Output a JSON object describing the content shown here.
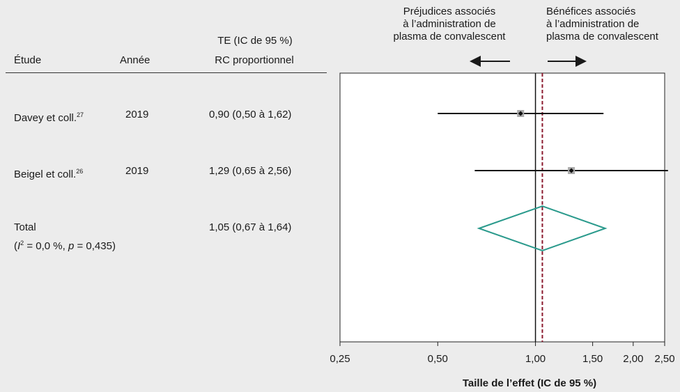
{
  "columns": {
    "study": "Étude",
    "year": "Année",
    "effect_line1": "TE (IC de 95 %)",
    "effect_line2": "RC proportionnel"
  },
  "rows": [
    {
      "study": "Davey et coll.",
      "ref": "27",
      "year": "2019",
      "effect": "0,90 (0,50 à 1,62)"
    },
    {
      "study": "Beigel et coll.",
      "ref": "26",
      "year": "2019",
      "effect": "1,29 (0,65 à 2,56)"
    }
  ],
  "total": {
    "label": "Total",
    "het_i": "I",
    "het_sup": "2",
    "het_rest": " = 0,0 %, ",
    "het_p": "p",
    "het_pval": " = 0,435)",
    "het_open": "(",
    "effect": "1,05 (0,67 à 1,64)"
  },
  "direction": {
    "left_lines": [
      "Préjudices associés",
      "à l’administration de",
      "plasma de convalescent"
    ],
    "right_lines": [
      "Bénéfices associés",
      "à l’administration de",
      "plasma de convalescent"
    ]
  },
  "chart_data": {
    "type": "forest",
    "scale": "log",
    "xlim": [
      0.25,
      2.5
    ],
    "ticks": [
      {
        "value": 0.25,
        "label": "0,25"
      },
      {
        "value": 0.5,
        "label": "0,50"
      },
      {
        "value": 1.0,
        "label": "1,00"
      },
      {
        "value": 1.5,
        "label": "1,50"
      },
      {
        "value": 2.0,
        "label": "2,00"
      },
      {
        "value": 2.5,
        "label": "2,50"
      }
    ],
    "xlabel": "Taille de l’effet (IC de 95 %)",
    "null_line": 1.0,
    "pooled_line": 1.05,
    "studies": [
      {
        "name": "Davey et coll.",
        "estimate": 0.9,
        "lower": 0.5,
        "upper": 1.62
      },
      {
        "name": "Beigel et coll.",
        "estimate": 1.29,
        "lower": 0.65,
        "upper": 2.56
      }
    ],
    "pooled": {
      "estimate": 1.05,
      "lower": 0.67,
      "upper": 1.64
    },
    "colors": {
      "diamond": "#2a9a8c",
      "pooled_line": "#8b1a2e",
      "marker_box": "#aaaaaa"
    }
  }
}
